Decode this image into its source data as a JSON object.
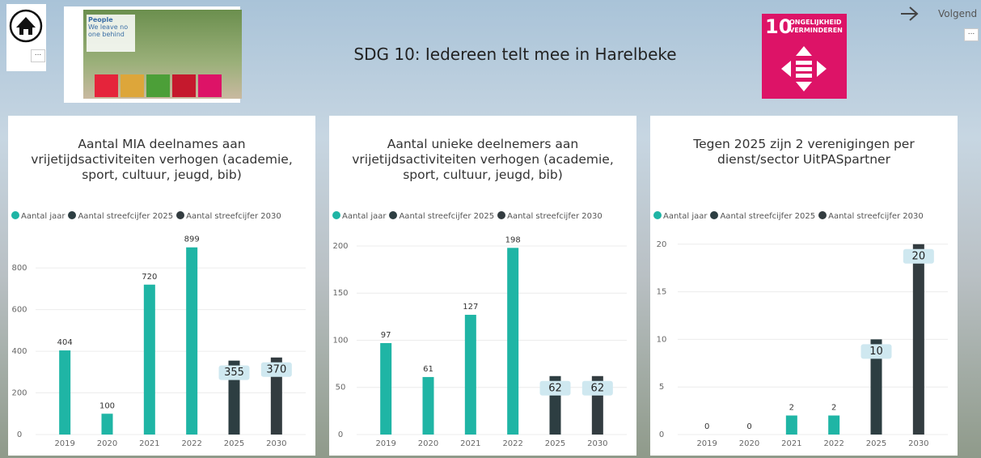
{
  "header": {
    "title": "SDG 10: Iedereen telt mee in Harelbeke",
    "next": "Volgend",
    "more": "...",
    "thumbnail": {
      "heading": "People",
      "text": "We leave no one behind"
    },
    "sdg_icon": {
      "number": "10",
      "text": "ONGELIJKHEID VERMINDEREN"
    }
  },
  "chart_data": [
    {
      "type": "bar",
      "title": "Aantal MIA deelnames aan vrijetijdsactiviteiten verhogen  (academie, sport, cultuur, jeugd, bib)",
      "categories": [
        "2019",
        "2020",
        "2021",
        "2022",
        "2025",
        "2030"
      ],
      "series": [
        {
          "name": "Aantal jaar",
          "color": "#1fb5a5",
          "values": [
            404,
            100,
            720,
            899,
            null,
            null
          ]
        },
        {
          "name": "Aantal streefcijfer 2025",
          "color": "#2d3e42",
          "values": [
            null,
            null,
            null,
            null,
            355,
            null
          ]
        },
        {
          "name": "Aantal streefcijfer 2030",
          "color": "#333c40",
          "values": [
            null,
            null,
            null,
            null,
            null,
            370
          ]
        }
      ],
      "ylim": [
        0,
        960
      ],
      "yticks": [
        0,
        200,
        400,
        600,
        800
      ],
      "grid": true
    },
    {
      "type": "bar",
      "title": "Aantal unieke deelnemers aan vrijetijdsactiviteiten verhogen  (academie, sport, cultuur, jeugd, bib)",
      "categories": [
        "2019",
        "2020",
        "2021",
        "2022",
        "2025",
        "2030"
      ],
      "series": [
        {
          "name": "Aantal jaar",
          "color": "#1fb5a5",
          "values": [
            97,
            61,
            127,
            198,
            null,
            null
          ]
        },
        {
          "name": "Aantal streefcijfer 2025",
          "color": "#2d3e42",
          "values": [
            null,
            null,
            null,
            null,
            62,
            null
          ]
        },
        {
          "name": "Aantal streefcijfer 2030",
          "color": "#333c40",
          "values": [
            null,
            null,
            null,
            null,
            null,
            62
          ]
        }
      ],
      "ylim": [
        0,
        212
      ],
      "yticks": [
        0,
        50,
        100,
        150,
        200
      ],
      "grid": true
    },
    {
      "type": "bar",
      "title": "Tegen 2025 zijn 2 verenigingen per dienst/sector UitPASpartner",
      "categories": [
        "2019",
        "2020",
        "2021",
        "2022",
        "2025",
        "2030"
      ],
      "series": [
        {
          "name": "Aantal jaar",
          "color": "#1fb5a5",
          "values": [
            0,
            0,
            2,
            2,
            null,
            null
          ]
        },
        {
          "name": "Aantal streefcijfer 2025",
          "color": "#2d3e42",
          "values": [
            null,
            null,
            null,
            null,
            10,
            null
          ]
        },
        {
          "name": "Aantal streefcijfer 2030",
          "color": "#333c40",
          "values": [
            null,
            null,
            null,
            null,
            null,
            20
          ]
        }
      ],
      "ylim": [
        0,
        21
      ],
      "yticks": [
        0,
        5,
        10,
        15,
        20
      ],
      "grid": true
    }
  ]
}
